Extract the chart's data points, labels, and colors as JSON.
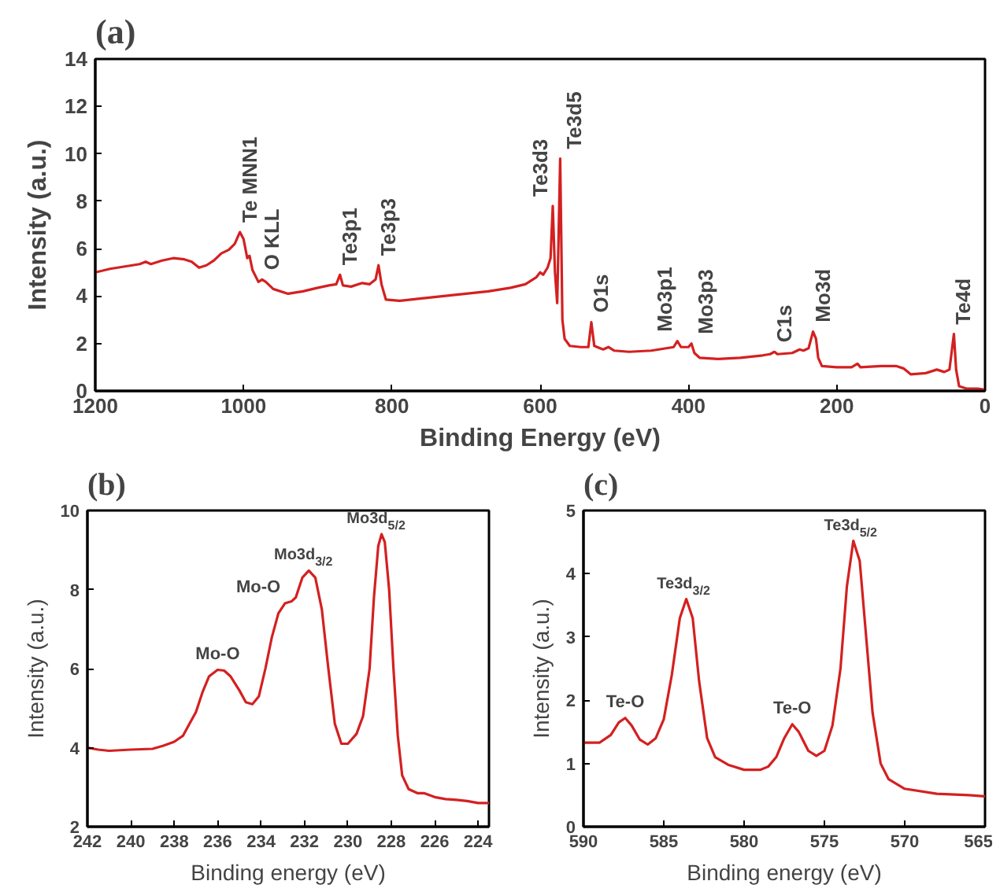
{
  "chart_data": [
    {
      "type": "line",
      "title": "(a)",
      "xlabel": "Binding Energy (eV)",
      "ylabel": "Intensity (a.u.)",
      "xlim": [
        1200,
        0
      ],
      "ylim": [
        0,
        14
      ],
      "xticks": [
        1200,
        1000,
        800,
        600,
        400,
        200,
        0
      ],
      "yticks": [
        0,
        2,
        4,
        6,
        8,
        10,
        12,
        14
      ],
      "grid": false,
      "marker": "none",
      "line_style": "solid",
      "series": [
        {
          "color": "#d42020",
          "x": [
            1200,
            1180,
            1160,
            1140,
            1132,
            1125,
            1110,
            1095,
            1080,
            1070,
            1060,
            1050,
            1040,
            1030,
            1020,
            1012,
            1005,
            1000,
            995,
            992,
            988,
            980,
            975,
            970,
            960,
            940,
            920,
            900,
            885,
            875,
            870,
            866,
            855,
            840,
            830,
            822,
            818,
            814,
            808,
            790,
            760,
            730,
            700,
            670,
            640,
            620,
            605,
            600,
            596,
            590,
            586,
            583,
            580,
            577,
            573,
            570,
            567,
            560,
            545,
            535,
            531,
            527,
            515,
            508,
            500,
            480,
            450,
            430,
            420,
            415,
            410,
            400,
            396,
            392,
            385,
            360,
            330,
            300,
            290,
            284,
            280,
            260,
            250,
            245,
            238,
            232,
            228,
            225,
            220,
            200,
            180,
            172,
            168,
            140,
            120,
            110,
            100,
            80,
            65,
            55,
            48,
            42,
            39,
            35,
            25,
            10,
            0
          ],
          "values": [
            5.0,
            5.15,
            5.25,
            5.35,
            5.45,
            5.35,
            5.5,
            5.6,
            5.55,
            5.45,
            5.2,
            5.3,
            5.5,
            5.8,
            5.95,
            6.2,
            6.7,
            6.4,
            5.6,
            5.7,
            5.1,
            4.6,
            4.7,
            4.6,
            4.3,
            4.1,
            4.2,
            4.35,
            4.45,
            4.5,
            4.9,
            4.45,
            4.4,
            4.55,
            4.5,
            4.7,
            5.3,
            4.5,
            3.85,
            3.8,
            3.9,
            4.0,
            4.1,
            4.2,
            4.35,
            4.5,
            4.8,
            5.0,
            4.9,
            5.2,
            5.6,
            7.8,
            5.0,
            3.7,
            9.8,
            3.0,
            2.2,
            1.9,
            1.85,
            1.85,
            2.9,
            1.9,
            1.75,
            1.85,
            1.7,
            1.65,
            1.7,
            1.8,
            1.85,
            2.1,
            1.85,
            1.85,
            2.0,
            1.6,
            1.4,
            1.35,
            1.4,
            1.5,
            1.55,
            1.65,
            1.55,
            1.6,
            1.75,
            1.7,
            1.8,
            2.5,
            2.2,
            1.4,
            1.05,
            1.0,
            1.0,
            1.15,
            1.0,
            1.05,
            1.05,
            0.95,
            0.7,
            0.75,
            0.9,
            0.8,
            0.9,
            2.4,
            0.9,
            0.2,
            0.1,
            0.1,
            0.05
          ]
        }
      ],
      "annotations": [
        {
          "text": "Te MNN1",
          "x": 1005,
          "y": 6.7
        },
        {
          "text": "O KLL",
          "x": 975,
          "y": 4.7
        },
        {
          "text": "Te3p1",
          "x": 870,
          "y": 4.9
        },
        {
          "text": "Te3p3",
          "x": 818,
          "y": 5.3
        },
        {
          "text": "Te3d3",
          "x": 583,
          "y": 7.8
        },
        {
          "text": "Te3d5",
          "x": 573,
          "y": 9.8
        },
        {
          "text": "O1s",
          "x": 531,
          "y": 2.9
        },
        {
          "text": "Mo3p1",
          "x": 415,
          "y": 2.1
        },
        {
          "text": "Mo3p3",
          "x": 396,
          "y": 2.0
        },
        {
          "text": "C1s",
          "x": 284,
          "y": 1.65
        },
        {
          "text": "Mo3d",
          "x": 232,
          "y": 2.5
        },
        {
          "text": "Te4d",
          "x": 42,
          "y": 2.4
        }
      ]
    },
    {
      "type": "line",
      "title": "(b)",
      "xlabel": "Binding energy (eV)",
      "ylabel": "Intensity (a.u.)",
      "xlim": [
        242,
        223.5
      ],
      "ylim": [
        2,
        10
      ],
      "xticks": [
        242,
        240,
        238,
        236,
        234,
        232,
        230,
        228,
        226,
        224
      ],
      "yticks": [
        2,
        4,
        6,
        8,
        10
      ],
      "grid": false,
      "marker": "none",
      "line_style": "solid",
      "series": [
        {
          "color": "#d42020",
          "x": [
            242,
            241.5,
            241,
            240,
            239,
            238.5,
            238,
            237.6,
            237.3,
            237,
            236.7,
            236.4,
            236,
            235.7,
            235.4,
            235,
            234.7,
            234.4,
            234.1,
            233.8,
            233.5,
            233.2,
            232.9,
            232.6,
            232.4,
            232.1,
            231.8,
            231.5,
            231.2,
            230.9,
            230.6,
            230.3,
            230,
            229.6,
            229.3,
            229,
            228.8,
            228.6,
            228.45,
            228.3,
            228.1,
            227.9,
            227.7,
            227.5,
            227.2,
            226.8,
            226.5,
            226,
            225.5,
            225,
            224.5,
            224,
            223.5
          ],
          "values": [
            4.0,
            3.95,
            3.92,
            3.95,
            3.97,
            4.05,
            4.15,
            4.3,
            4.6,
            4.9,
            5.4,
            5.8,
            5.97,
            5.95,
            5.8,
            5.45,
            5.15,
            5.1,
            5.3,
            6.0,
            6.8,
            7.4,
            7.65,
            7.7,
            7.8,
            8.3,
            8.48,
            8.3,
            7.5,
            6.0,
            4.6,
            4.1,
            4.1,
            4.35,
            4.8,
            6.0,
            7.8,
            9.1,
            9.4,
            9.2,
            8.0,
            6.0,
            4.3,
            3.3,
            2.95,
            2.85,
            2.85,
            2.75,
            2.7,
            2.68,
            2.65,
            2.6,
            2.6
          ]
        }
      ],
      "annotations": [
        {
          "text": "Mo-O",
          "x": 236,
          "y": 5.97
        },
        {
          "text": "Mo-O",
          "x": 232.6,
          "y": 7.7
        },
        {
          "text": "Mo3d$_{3/2}$",
          "x": 231.8,
          "y": 8.48
        },
        {
          "text": "Mo3d$_{5/2}$",
          "x": 228.45,
          "y": 9.4
        }
      ]
    },
    {
      "type": "line",
      "title": "(c)",
      "xlabel": "Binding energy (eV)",
      "ylabel": "Intensity (a.u.)",
      "xlim": [
        590,
        565
      ],
      "ylim": [
        0,
        5
      ],
      "xticks": [
        590,
        585,
        580,
        575,
        570,
        565
      ],
      "yticks": [
        0,
        1,
        2,
        3,
        4,
        5
      ],
      "grid": false,
      "marker": "none",
      "line_style": "solid",
      "series": [
        {
          "color": "#d42020",
          "x": [
            590,
            589,
            588.3,
            587.8,
            587.4,
            587,
            586.5,
            586,
            585.5,
            585,
            584.5,
            584,
            583.6,
            583.2,
            582.8,
            582.3,
            581.8,
            581,
            580,
            579,
            578.5,
            578,
            577.5,
            577,
            576.6,
            576,
            575.5,
            575,
            574.5,
            574,
            573.6,
            573.2,
            572.8,
            572.4,
            572,
            571.5,
            571,
            570,
            568,
            566,
            565
          ],
          "values": [
            1.33,
            1.33,
            1.45,
            1.65,
            1.72,
            1.6,
            1.38,
            1.3,
            1.4,
            1.7,
            2.4,
            3.3,
            3.6,
            3.3,
            2.3,
            1.4,
            1.1,
            0.98,
            0.9,
            0.9,
            0.95,
            1.1,
            1.4,
            1.62,
            1.5,
            1.2,
            1.12,
            1.2,
            1.6,
            2.5,
            3.8,
            4.52,
            4.2,
            3.0,
            1.8,
            1.0,
            0.75,
            0.6,
            0.52,
            0.5,
            0.48
          ]
        }
      ],
      "annotations": [
        {
          "text": "Te-O",
          "x": 587.4,
          "y": 1.72
        },
        {
          "text": "Te3d$_{3/2}$",
          "x": 583.6,
          "y": 3.6
        },
        {
          "text": "Te-O",
          "x": 577,
          "y": 1.62
        },
        {
          "text": "Te3d$_{5/2}$",
          "x": 573.2,
          "y": 4.52
        }
      ]
    }
  ]
}
